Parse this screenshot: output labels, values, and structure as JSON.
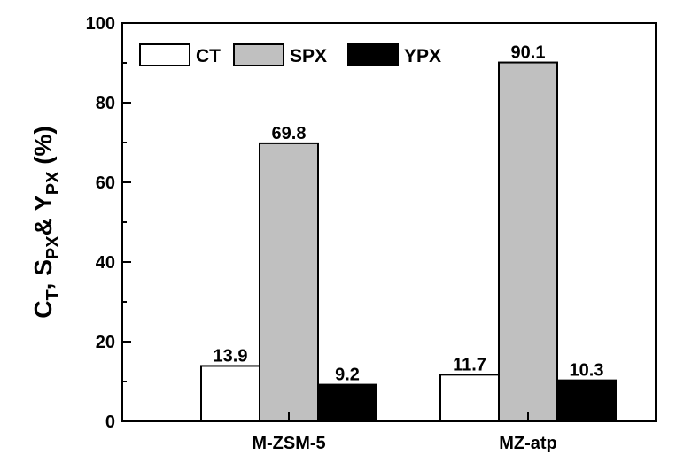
{
  "chart_data": {
    "type": "bar",
    "categories": [
      "M-ZSM-5",
      "MZ-atp"
    ],
    "series": [
      {
        "name": "CT",
        "values": [
          13.9,
          11.7
        ],
        "color": "#ffffff"
      },
      {
        "name": "SPX",
        "values": [
          69.8,
          90.1
        ],
        "color": "#c0c0c0"
      },
      {
        "name": "YPX",
        "values": [
          9.2,
          10.3
        ],
        "color": "#000000"
      }
    ],
    "data_labels": [
      [
        "13.9",
        "11.7"
      ],
      [
        "69.8",
        "90.1"
      ],
      [
        "9.2",
        "10.3"
      ]
    ],
    "ylim": [
      0,
      100
    ],
    "yticks": [
      "0",
      "20",
      "40",
      "60",
      "80",
      "100"
    ],
    "ylabel": {
      "parts": [
        {
          "t": "C",
          "sub": false
        },
        {
          "t": "T",
          "sub": true
        },
        {
          "t": ", S",
          "sub": false
        },
        {
          "t": "PX",
          "sub": true
        },
        {
          "t": "& Y",
          "sub": false
        },
        {
          "t": "PX",
          "sub": true
        },
        {
          "t": " (%)",
          "sub": false
        }
      ]
    },
    "xlabel": "",
    "title": "",
    "legend_position": "top-left",
    "grid": false
  }
}
